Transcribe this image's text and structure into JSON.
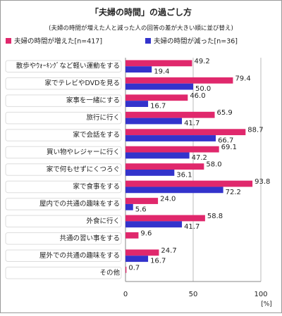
{
  "chart_data": {
    "type": "bar",
    "orientation": "horizontal",
    "title": "「夫婦の時間」の過ごし方",
    "subtitle": "(夫婦の時間が増えた人と減った人の回答の差が大きい順に並び替え)",
    "x_unit": "[%]",
    "categories": [
      "散歩やｳｫｰｷﾝｸﾞなど軽い運動をする",
      "家でテレビやDVDを見る",
      "家事を一緒にする",
      "旅行に行く",
      "家で会話をする",
      "買い物やレジャーに行く",
      "家で何もせずにくつろぐ",
      "家で食事をする",
      "屋内での共通の趣味をする",
      "外食に行く",
      "共通の習い事をする",
      "屋外での共通の趣味をする",
      "その他"
    ],
    "series": [
      {
        "name": "夫婦の時間が増えた[n=417]",
        "color": "#e0286c",
        "values": [
          49.2,
          79.4,
          46.0,
          65.9,
          88.7,
          69.1,
          58.0,
          93.8,
          24.0,
          58.8,
          9.6,
          24.7,
          0.7
        ],
        "value_labels": [
          "49.2",
          "79.4",
          "46.0",
          "65.9",
          "88.7",
          "69.1",
          "58.0",
          "93.8",
          "24.0",
          "58.8",
          "9.6",
          "24.7",
          "0.7"
        ]
      },
      {
        "name": "夫婦の時間が減った[n=36]",
        "color": "#3333cc",
        "values": [
          19.4,
          50.0,
          16.7,
          41.7,
          66.7,
          47.2,
          36.1,
          72.2,
          5.6,
          41.7,
          null,
          16.7,
          null
        ],
        "value_labels": [
          "19.4",
          "50.0",
          "16.7",
          "41.7",
          "66.7",
          "47.2",
          "36.1",
          "72.2",
          "5.6",
          "41.7",
          null,
          "16.7",
          null
        ]
      }
    ],
    "xlim": [
      0,
      100
    ],
    "xticks": [
      0,
      50,
      100
    ],
    "grid": true
  }
}
